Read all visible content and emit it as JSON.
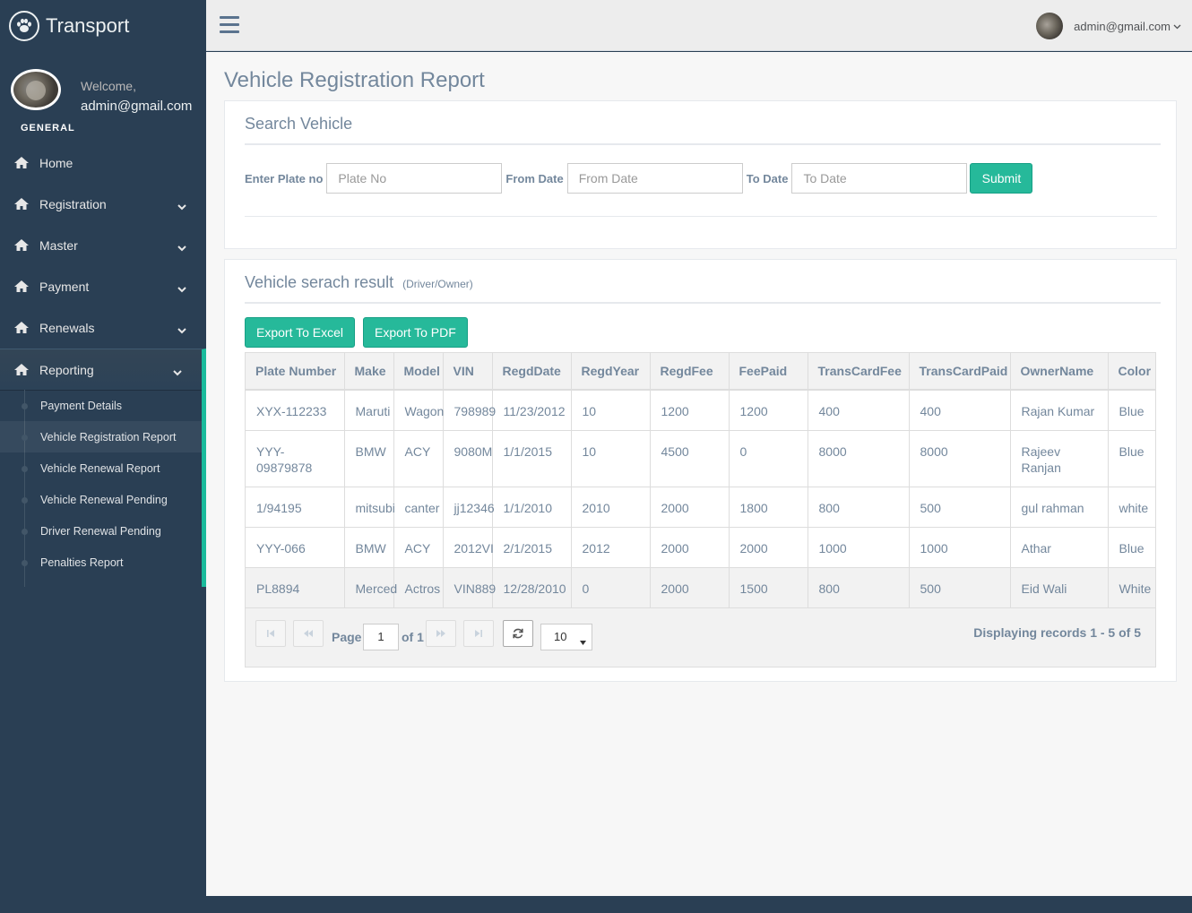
{
  "brand": {
    "title": "Transport",
    "logo_icon": "paw-icon"
  },
  "profile": {
    "welcome": "Welcome,",
    "email": "admin@gmail.com"
  },
  "sidebar": {
    "section_label": "GENERAL",
    "menu": [
      {
        "label": "Home",
        "icon": "home-icon",
        "has_chevron": false
      },
      {
        "label": "Registration",
        "icon": "home-icon",
        "has_chevron": true
      },
      {
        "label": "Master",
        "icon": "home-icon",
        "has_chevron": true
      },
      {
        "label": "Payment",
        "icon": "home-icon",
        "has_chevron": true
      },
      {
        "label": "Renewals",
        "icon": "home-icon",
        "has_chevron": true
      },
      {
        "label": "Reporting",
        "icon": "home-icon",
        "has_chevron": true,
        "active": true
      }
    ],
    "reporting_submenu": [
      "Payment Details",
      "Vehicle Registration Report",
      "Vehicle Renewal Report",
      "Vehicle Renewal Pending",
      "Driver Renewal Pending",
      "Penalties Report"
    ]
  },
  "topnav": {
    "user_email": "admin@gmail.com"
  },
  "page": {
    "title": "Vehicle Registration Report"
  },
  "search": {
    "heading": "Search Vehicle",
    "plate_label": "Enter Plate no",
    "plate_placeholder": "Plate No",
    "from_label": "From Date",
    "from_placeholder": "From Date",
    "to_label": "To Date",
    "to_placeholder": "To Date",
    "submit_label": "Submit"
  },
  "results": {
    "heading": "Vehicle serach result",
    "subheading": "(Driver/Owner)",
    "export_excel": "Export To Excel",
    "export_pdf": "Export To PDF",
    "columns": [
      "Plate Number",
      "Make",
      "Model",
      "VIN",
      "RegdDate",
      "RegdYear",
      "RegdFee",
      "FeePaid",
      "TransCardFee",
      "TransCardPaid",
      "OwnerName",
      "Color"
    ],
    "rows": [
      [
        "XYX-112233",
        "Maruti",
        "Wagon",
        "798989",
        "11/23/2012",
        "10",
        "1200",
        "1200",
        "400",
        "400",
        "Rajan Kumar",
        "Blue"
      ],
      [
        "YYY-09879878",
        "BMW",
        "ACY",
        "9080M",
        "1/1/2015",
        "10",
        "4500",
        "0",
        "8000",
        "8000",
        "Rajeev Ranjan",
        "Blue"
      ],
      [
        "1/94195",
        "mitsubi",
        "canter",
        "jj12346",
        "1/1/2010",
        "2010",
        "2000",
        "1800",
        "800",
        "500",
        "gul rahman",
        "white"
      ],
      [
        "YYY-066",
        "BMW",
        "ACY",
        "2012VI",
        "2/1/2015",
        "2012",
        "2000",
        "2000",
        "1000",
        "1000",
        "Athar",
        "Blue"
      ],
      [
        "PL8894",
        "Merced",
        "Actros",
        "VIN889",
        "12/28/2010",
        "0",
        "2000",
        "1500",
        "800",
        "500",
        "Eid Wali",
        "White"
      ]
    ]
  },
  "pager": {
    "page_label": "Page",
    "page_value": "1",
    "of_label": "of 1",
    "page_size": "10",
    "display_info": "Displaying records 1 - 5 of 5"
  },
  "colors": {
    "sidebar": "#2A3F54",
    "accent": "#1ABB9C",
    "button": "#26B99A",
    "text": "#73879C"
  }
}
